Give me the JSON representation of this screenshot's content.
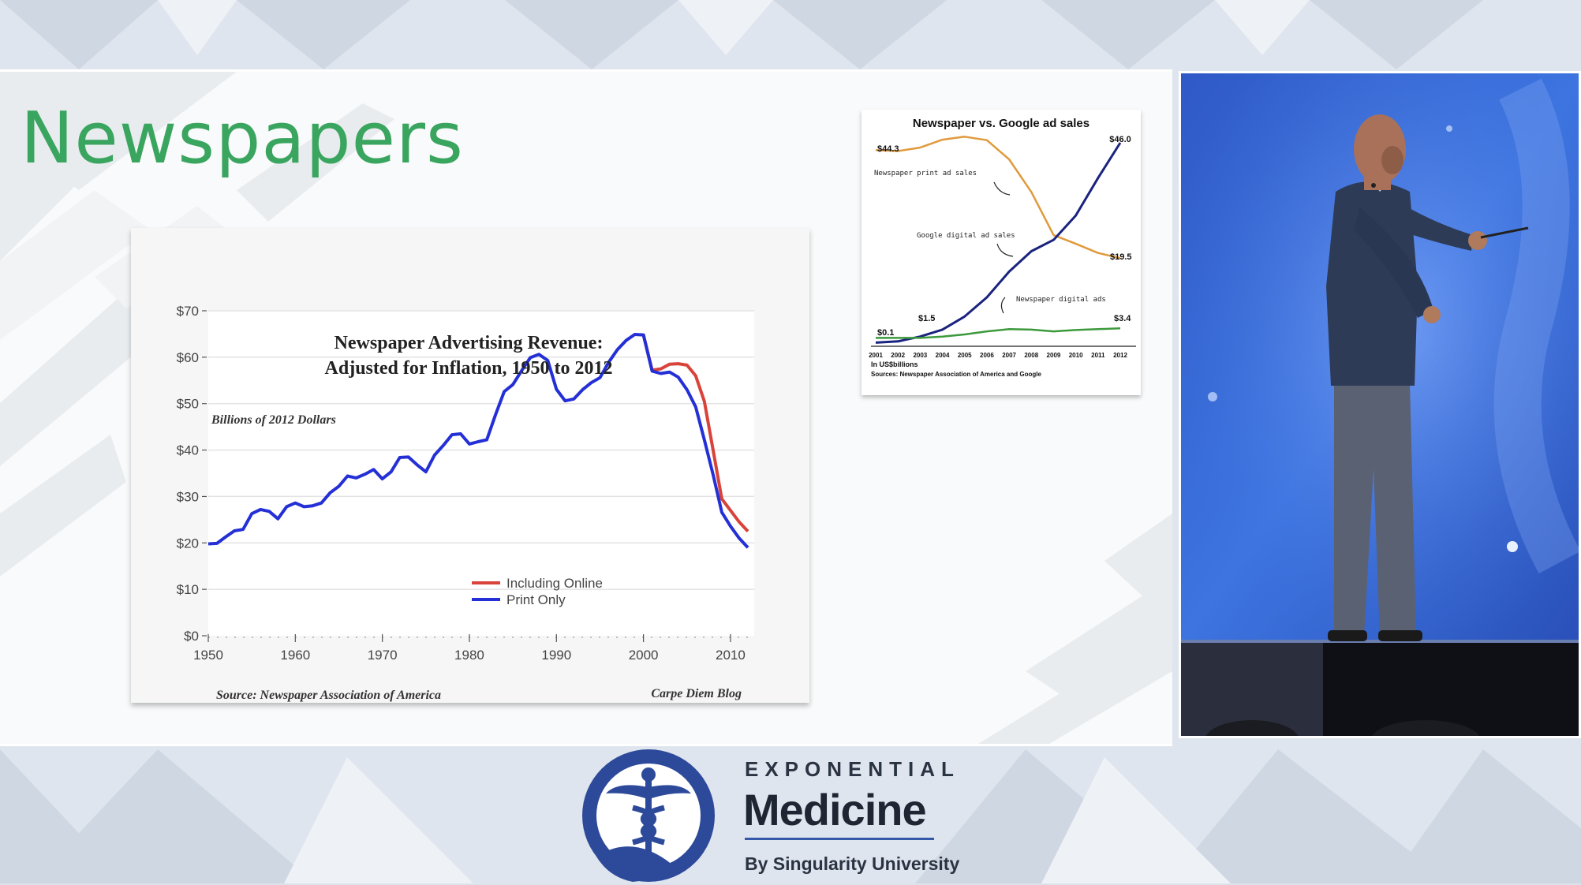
{
  "slide": {
    "title": "Newspapers"
  },
  "colors": {
    "title_green": "#3aa55f",
    "brand_blue": "#2d4a9a",
    "including_online": "#d8433a",
    "print_only": "#2430d6",
    "newspaper_print": "#e09a3c",
    "google": "#1a237e",
    "newspaper_digital": "#3c9a3c"
  },
  "chart_data": [
    {
      "type": "line",
      "title": "Newspaper Advertising Revenue:",
      "subtitle": "Adjusted for Inflation, 1950 to 2012",
      "unit_label": "Billions of 2012 Dollars",
      "source": "Source: Newspaper Association of America",
      "credit": "Carpe Diem Blog",
      "xlim": [
        1950,
        2012
      ],
      "ylim": [
        0,
        70
      ],
      "x_ticks": [
        "1950",
        "1960",
        "1970",
        "1980",
        "1990",
        "2000",
        "2010"
      ],
      "y_ticks": [
        "$0",
        "$10",
        "$20",
        "$30",
        "$40",
        "$50",
        "$60",
        "$70"
      ],
      "grid": true,
      "legend_position": "center",
      "series": [
        {
          "name": "Including Online",
          "x": [
            2000,
            2001,
            2002,
            2003,
            2004,
            2005,
            2006,
            2007,
            2008,
            2009,
            2010,
            2011,
            2012
          ],
          "values": [
            64.8,
            57.2,
            57.5,
            58.5,
            58.6,
            58.3,
            56.0,
            50.5,
            40.0,
            29.5,
            27.0,
            24.5,
            22.5
          ]
        },
        {
          "name": "Print Only",
          "x": [
            1950,
            1951,
            1952,
            1953,
            1954,
            1955,
            1956,
            1957,
            1958,
            1959,
            1960,
            1961,
            1962,
            1963,
            1964,
            1965,
            1966,
            1967,
            1968,
            1969,
            1970,
            1971,
            1972,
            1973,
            1974,
            1975,
            1976,
            1977,
            1978,
            1979,
            1980,
            1981,
            1982,
            1983,
            1984,
            1985,
            1986,
            1987,
            1988,
            1989,
            1990,
            1991,
            1992,
            1993,
            1994,
            1995,
            1996,
            1997,
            1998,
            1999,
            2000,
            2001,
            2002,
            2003,
            2004,
            2005,
            2006,
            2007,
            2008,
            2009,
            2010,
            2011,
            2012
          ],
          "values": [
            19.8,
            19.9,
            21.3,
            22.6,
            22.9,
            26.3,
            27.2,
            26.8,
            25.2,
            27.8,
            28.6,
            27.8,
            28.0,
            28.6,
            30.8,
            32.2,
            34.4,
            34.0,
            34.8,
            35.8,
            33.8,
            35.3,
            38.4,
            38.5,
            36.8,
            35.3,
            38.9,
            41.0,
            43.3,
            43.5,
            41.3,
            41.8,
            42.2,
            47.6,
            52.6,
            54.1,
            57.1,
            59.9,
            60.6,
            59.3,
            53.1,
            50.6,
            51.0,
            53.0,
            54.5,
            55.6,
            58.9,
            61.6,
            63.6,
            64.9,
            64.8,
            57.0,
            56.5,
            56.8,
            55.7,
            53.0,
            49.3,
            42.2,
            34.7,
            26.6,
            23.6,
            21.0,
            19.0
          ]
        }
      ]
    },
    {
      "type": "line",
      "title": "Newspaper vs. Google ad sales",
      "x": [
        "2001",
        "2002",
        "2003",
        "2004",
        "2005",
        "2006",
        "2007",
        "2008",
        "2009",
        "2010",
        "2011",
        "2012"
      ],
      "x_note": "In US$billions",
      "source": "Sources: Newspaper Association of America and Google",
      "annotations": [
        "Newspaper print ad sales",
        "Google digital ad sales",
        "Newspaper digital ads"
      ],
      "value_labels": [
        "$44.3",
        "$46.0",
        "$19.5",
        "$1.5",
        "$3.4",
        "$0.1"
      ],
      "series": [
        {
          "name": "Newspaper print ad sales",
          "values": [
            44.3,
            44.1,
            44.9,
            46.7,
            47.4,
            46.6,
            42.2,
            34.7,
            24.8,
            22.8,
            20.7,
            19.5
          ]
        },
        {
          "name": "Google digital ad sales",
          "values": [
            0.1,
            0.4,
            1.5,
            3.1,
            6.1,
            10.5,
            16.4,
            21.1,
            23.7,
            29.3,
            37.9,
            46.0
          ]
        },
        {
          "name": "Newspaper digital ads",
          "values": [
            1.2,
            1.2,
            1.2,
            1.5,
            2.0,
            2.7,
            3.2,
            3.1,
            2.7,
            3.0,
            3.2,
            3.4
          ]
        }
      ]
    }
  ],
  "logo": {
    "top_text": "EXPONENTIAL",
    "main_text": "Medicine",
    "sub_text": "By Singularity University"
  }
}
